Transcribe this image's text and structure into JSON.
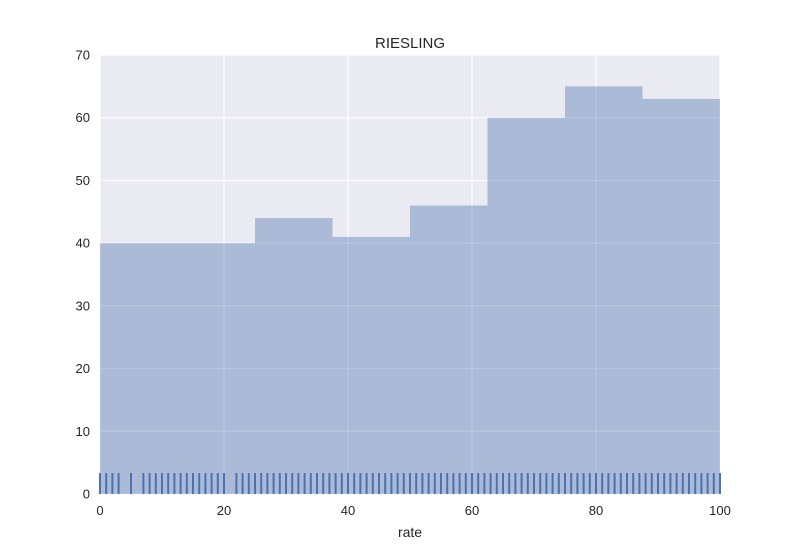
{
  "chart_data": {
    "type": "bar",
    "title": "RIESLING",
    "xlabel": "rate",
    "ylabel": "",
    "xlim": [
      0,
      100
    ],
    "ylim": [
      0,
      70
    ],
    "xticks": [
      "0",
      "20",
      "40",
      "60",
      "80",
      "100"
    ],
    "yticks": [
      "0",
      "10",
      "20",
      "30",
      "40",
      "50",
      "60",
      "70"
    ],
    "bins": [
      {
        "start": 0,
        "end": 12.5,
        "value": 40
      },
      {
        "start": 12.5,
        "end": 25,
        "value": 40
      },
      {
        "start": 25,
        "end": 37.5,
        "value": 44
      },
      {
        "start": 37.5,
        "end": 50,
        "value": 41
      },
      {
        "start": 50,
        "end": 62.5,
        "value": 46
      },
      {
        "start": 62.5,
        "end": 75,
        "value": 60
      },
      {
        "start": 75,
        "end": 87.5,
        "value": 65
      },
      {
        "start": 87.5,
        "end": 100,
        "value": 63
      }
    ],
    "rug": [
      0,
      1,
      2,
      3,
      5,
      7,
      8,
      9,
      10,
      11,
      12,
      13,
      14,
      15,
      16,
      17,
      18,
      19,
      20,
      22,
      23,
      24,
      25,
      26,
      27,
      28,
      29,
      30,
      31,
      32,
      33,
      34,
      35,
      36,
      37,
      38,
      39,
      40,
      41,
      42,
      43,
      44,
      45,
      46,
      47,
      48,
      49,
      50,
      51,
      52,
      53,
      54,
      55,
      56,
      57,
      58,
      59,
      60,
      61,
      62,
      63,
      64,
      65,
      66,
      67,
      68,
      69,
      70,
      71,
      72,
      73,
      74,
      75,
      76,
      77,
      78,
      79,
      80,
      81,
      82,
      83,
      84,
      85,
      86,
      87,
      88,
      89,
      90,
      91,
      92,
      93,
      94,
      95,
      96,
      97,
      98,
      99,
      100
    ],
    "grid": true,
    "colors": {
      "background": "#eaeaf2",
      "bar": "#4c72b0",
      "rug": "#4c72b0",
      "grid": "#ffffff"
    }
  }
}
